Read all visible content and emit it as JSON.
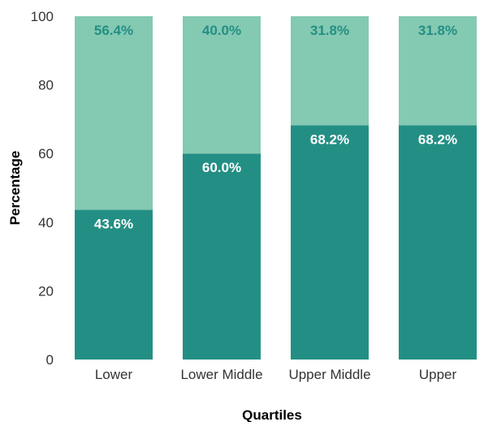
{
  "chart_data": {
    "type": "bar",
    "stacked": true,
    "categories": [
      "Lower",
      "Lower Middle",
      "Upper Middle",
      "Upper"
    ],
    "series": [
      {
        "values": [
          43.6,
          60.0,
          68.2,
          68.2
        ],
        "labels": [
          "43.6%",
          "60.0%",
          "68.2%",
          "68.2%"
        ],
        "color": "#238f84",
        "label_color": "#ffffff"
      },
      {
        "values": [
          56.4,
          40.0,
          31.8,
          31.8
        ],
        "labels": [
          "56.4%",
          "40.0%",
          "31.8%",
          "31.8%"
        ],
        "color": "#84c9b2",
        "label_color": "#238f84"
      }
    ],
    "title": "",
    "xlabel": "Quartiles",
    "ylabel": "Percentage",
    "ylim": [
      0,
      100
    ],
    "yticks": [
      0,
      20,
      40,
      60,
      80,
      100
    ],
    "yticklabels": [
      "0",
      "20",
      "40",
      "60",
      "80",
      "100"
    ],
    "grid": false,
    "legend": "none"
  }
}
